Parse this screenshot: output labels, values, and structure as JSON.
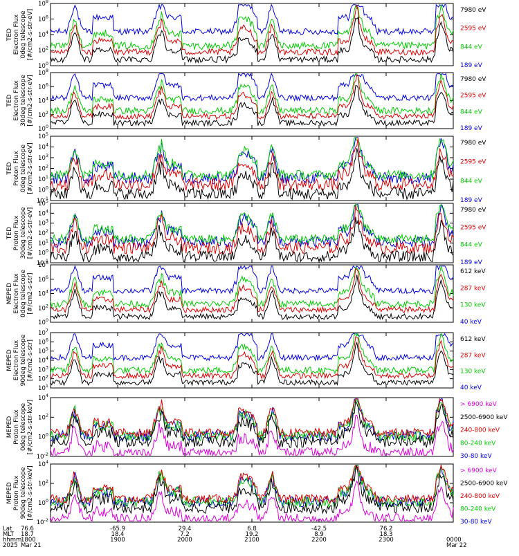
{
  "chart_data": {
    "type": "line",
    "title": "",
    "panels": [
      {
        "ylabel": [
          "TED",
          "Electron Flux",
          "0deg telescope",
          "[#/cm2-s-str-eV]"
        ],
        "ticks": [
          "10^8",
          "10^6",
          "10^4",
          "10^2",
          "10^0"
        ],
        "ylim": [
          0,
          8
        ],
        "legend": [
          "7980 eV",
          "2595 eV",
          "844 eV",
          "189 eV"
        ],
        "colors": [
          "#000000",
          "#dd0000",
          "#00cc00",
          "#0000dd"
        ]
      },
      {
        "ylabel": [
          "TED",
          "Electron Flux",
          "30deg telescope",
          "[#/cm2-s-str-eV]"
        ],
        "ticks": [
          "10^8",
          "10^6",
          "10^4",
          "10^2",
          "10^0"
        ],
        "ylim": [
          0,
          8
        ],
        "legend": [
          "7980 eV",
          "2595 eV",
          "844 eV",
          "189 eV"
        ],
        "colors": [
          "#000000",
          "#dd0000",
          "#00cc00",
          "#0000dd"
        ]
      },
      {
        "ylabel": [
          "TED",
          "Proton Flux",
          "0deg telescope",
          "[#/cm2-s-str-eV]"
        ],
        "ticks": [
          "10^5",
          "10^4",
          "10^3",
          "10^2",
          "10^1",
          "10^0",
          "10^-1"
        ],
        "ylim": [
          -1,
          5
        ],
        "legend": [
          "7980 eV",
          "2595 eV",
          "844 eV",
          "189 eV"
        ],
        "colors": [
          "#000000",
          "#dd0000",
          "#00cc00",
          "#0000dd"
        ]
      },
      {
        "ylabel": [
          "TED",
          "Proton Flux",
          "30deg telescope",
          "[#/cm2-s-str-eV]"
        ],
        "ticks": [
          "10^5",
          "10^4",
          "10^3",
          "10^2",
          "10^1",
          "10^0",
          "10^-1"
        ],
        "ylim": [
          -1,
          5
        ],
        "legend": [
          "7980 eV",
          "2595 eV",
          "844 eV",
          "189 eV"
        ],
        "colors": [
          "#000000",
          "#dd0000",
          "#00cc00",
          "#0000dd"
        ]
      },
      {
        "ylabel": [
          "MEPED",
          "Electron Flux",
          "0deg telescope",
          "[#/cm2-s-str]"
        ],
        "ticks": [
          "10^8",
          "10^6",
          "10^4",
          "10^2",
          "10^0"
        ],
        "ylim": [
          0,
          8
        ],
        "legend": [
          "612 keV",
          "287 keV",
          "130 keV",
          "40 keV"
        ],
        "colors": [
          "#000000",
          "#dd0000",
          "#00cc00",
          "#0000dd"
        ]
      },
      {
        "ylabel": [
          "MEPED",
          "Electron Flux",
          "90deg telescope",
          "[#/cm2-s-str]"
        ],
        "ticks": [
          "10^7",
          "10^6",
          "10^5",
          "10^4",
          "10^3",
          "10^2",
          "10^1"
        ],
        "ylim": [
          1,
          7
        ],
        "legend": [
          "612 keV",
          "287 keV",
          "130 keV",
          "40 keV"
        ],
        "colors": [
          "#000000",
          "#dd0000",
          "#00cc00",
          "#0000dd"
        ]
      },
      {
        "ylabel": [
          "MEPED",
          "Proton Flux",
          "0deg telescope",
          "[#/cm2-s-str-keV]"
        ],
        "ticks": [
          "10^4",
          "10^2",
          "10^0",
          "10^-2"
        ],
        "ylim": [
          -2,
          4
        ],
        "legend": [
          "> 6900 keV",
          "2500-6900 keV",
          "240-800 keV",
          "80-240 keV",
          "30-80 keV"
        ],
        "colors": [
          "#dd00dd",
          "#000000",
          "#dd0000",
          "#00cc00",
          "#0000dd"
        ]
      },
      {
        "ylabel": [
          "MEPED",
          "Proton Flux",
          "90deg telescope",
          "[#/cm2-s-str-keV]"
        ],
        "ticks": [
          "10^4",
          "10^2",
          "10^0",
          "10^-2"
        ],
        "ylim": [
          -2,
          4
        ],
        "legend": [
          "> 6900 keV",
          "2500-6900 keV",
          "240-800 keV",
          "80-240 keV",
          "30-80 keV"
        ],
        "colors": [
          "#dd00dd",
          "#000000",
          "#dd0000",
          "#00cc00",
          "#0000dd"
        ]
      }
    ],
    "xaxis": {
      "row_labels": [
        "Lat",
        "MLT",
        "hhmm",
        "2025"
      ],
      "columns": [
        {
          "lat": "76.6",
          "mlt": "18.7",
          "hhmm": "1800",
          "date": "Mar 21"
        },
        {
          "lat": "-65.9",
          "mlt": "18.4",
          "hhmm": "1900",
          "date": ""
        },
        {
          "lat": "29.4",
          "mlt": "7.2",
          "hhmm": "2000",
          "date": ""
        },
        {
          "lat": "6.8",
          "mlt": "19.2",
          "hhmm": "2100",
          "date": ""
        },
        {
          "lat": "-42.5",
          "mlt": "8.9",
          "hhmm": "2200",
          "date": ""
        },
        {
          "lat": "76.2",
          "mlt": "18.3",
          "hhmm": "2300",
          "date": ""
        },
        {
          "lat": "",
          "mlt": "",
          "hhmm": "0000",
          "date": "Mar 22"
        }
      ]
    },
    "xlim_hours": [
      18,
      24
    ],
    "time_range": "2025 Mar 21 1800 UT to Mar 22 0000 UT"
  }
}
